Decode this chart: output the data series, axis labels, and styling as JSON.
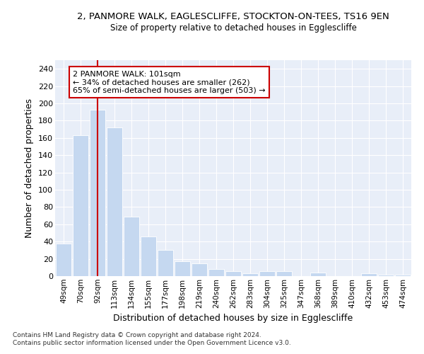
{
  "title1": "2, PANMORE WALK, EAGLESCLIFFE, STOCKTON-ON-TEES, TS16 9EN",
  "title2": "Size of property relative to detached houses in Egglescliffe",
  "xlabel": "Distribution of detached houses by size in Egglescliffe",
  "ylabel": "Number of detached properties",
  "categories": [
    "49sqm",
    "70sqm",
    "92sqm",
    "113sqm",
    "134sqm",
    "155sqm",
    "177sqm",
    "198sqm",
    "219sqm",
    "240sqm",
    "262sqm",
    "283sqm",
    "304sqm",
    "325sqm",
    "347sqm",
    "368sqm",
    "389sqm",
    "410sqm",
    "432sqm",
    "453sqm",
    "474sqm"
  ],
  "values": [
    38,
    163,
    193,
    172,
    69,
    46,
    30,
    17,
    15,
    8,
    6,
    3,
    6,
    6,
    0,
    4,
    0,
    0,
    3,
    2,
    2
  ],
  "bar_color": "#c5d8f0",
  "vline_x": 2,
  "vline_color": "#cc0000",
  "annotation_title": "2 PANMORE WALK: 101sqm",
  "annotation_line1": "← 34% of detached houses are smaller (262)",
  "annotation_line2": "65% of semi-detached houses are larger (503) →",
  "annotation_box_color": "#ffffff",
  "annotation_box_edge": "#cc0000",
  "ylim": [
    0,
    250
  ],
  "yticks": [
    0,
    20,
    40,
    60,
    80,
    100,
    120,
    140,
    160,
    180,
    200,
    220,
    240
  ],
  "bg_color": "#e8eef8",
  "grid_color": "#ffffff",
  "footer1": "Contains HM Land Registry data © Crown copyright and database right 2024.",
  "footer2": "Contains public sector information licensed under the Open Government Licence v3.0."
}
